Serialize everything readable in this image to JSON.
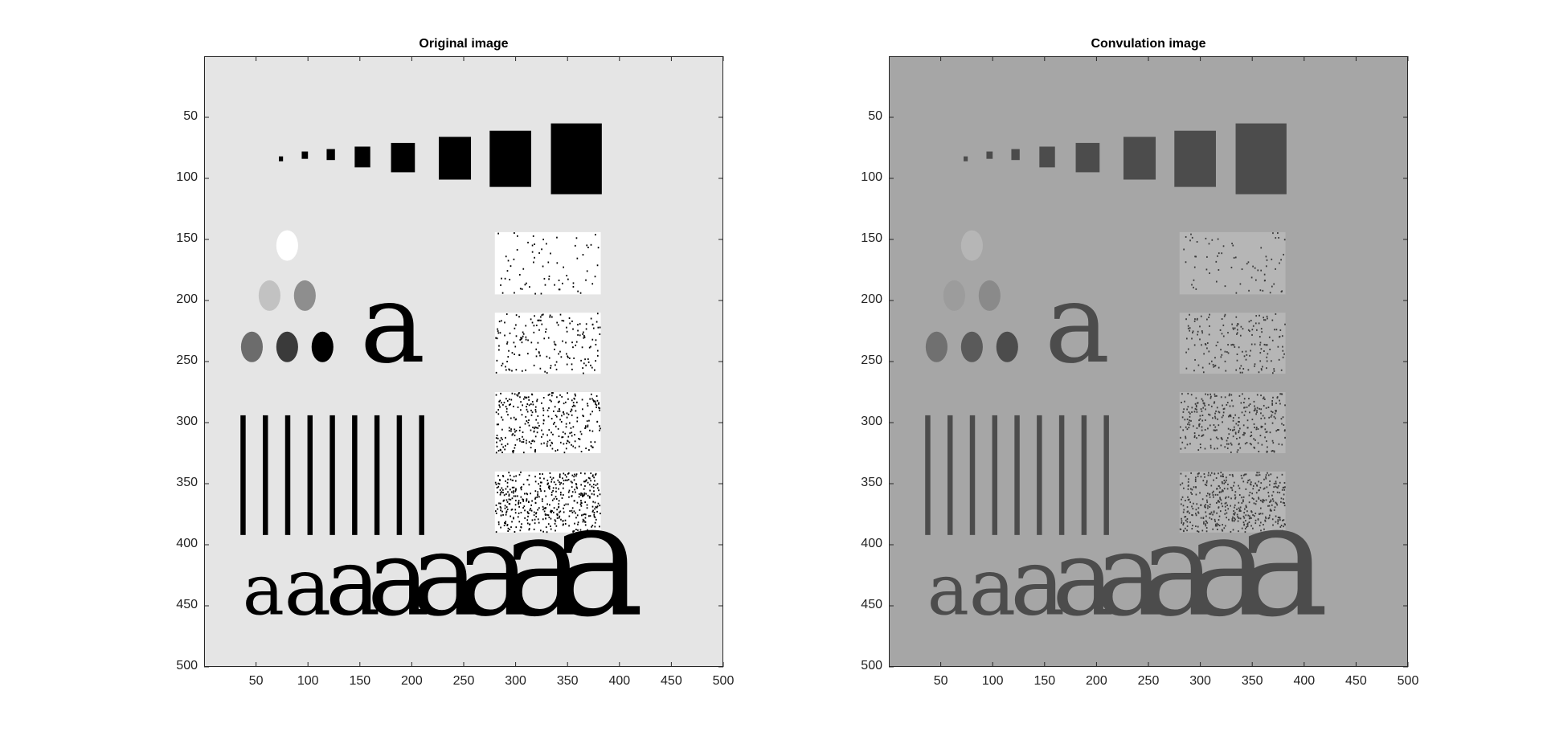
{
  "figure": {
    "panels": [
      {
        "id": "original",
        "title": "Original image",
        "background": "#e5e5e5",
        "shade_colors": [
          "#ffffff",
          "#c2c2c2",
          "#8e8e8e",
          "#6c6c6c",
          "#3a3a3a",
          "#000000"
        ],
        "dot_color": "#000000"
      },
      {
        "id": "convolution",
        "title": "Convulation image",
        "background": "#a6a6a6",
        "shade_colors": [
          "#b6b6b6",
          "#9c9c9c",
          "#8a8a8a",
          "#707070",
          "#5a5a5a",
          "#4c4c4c"
        ],
        "dot_color": "#3a3a3a"
      }
    ],
    "x_ticks": [
      "50",
      "100",
      "150",
      "200",
      "250",
      "300",
      "350",
      "400",
      "450",
      "500"
    ],
    "y_ticks": [
      "50",
      "100",
      "150",
      "200",
      "250",
      "300",
      "350",
      "400",
      "450",
      "500"
    ],
    "axis_range": [
      0,
      500
    ]
  }
}
